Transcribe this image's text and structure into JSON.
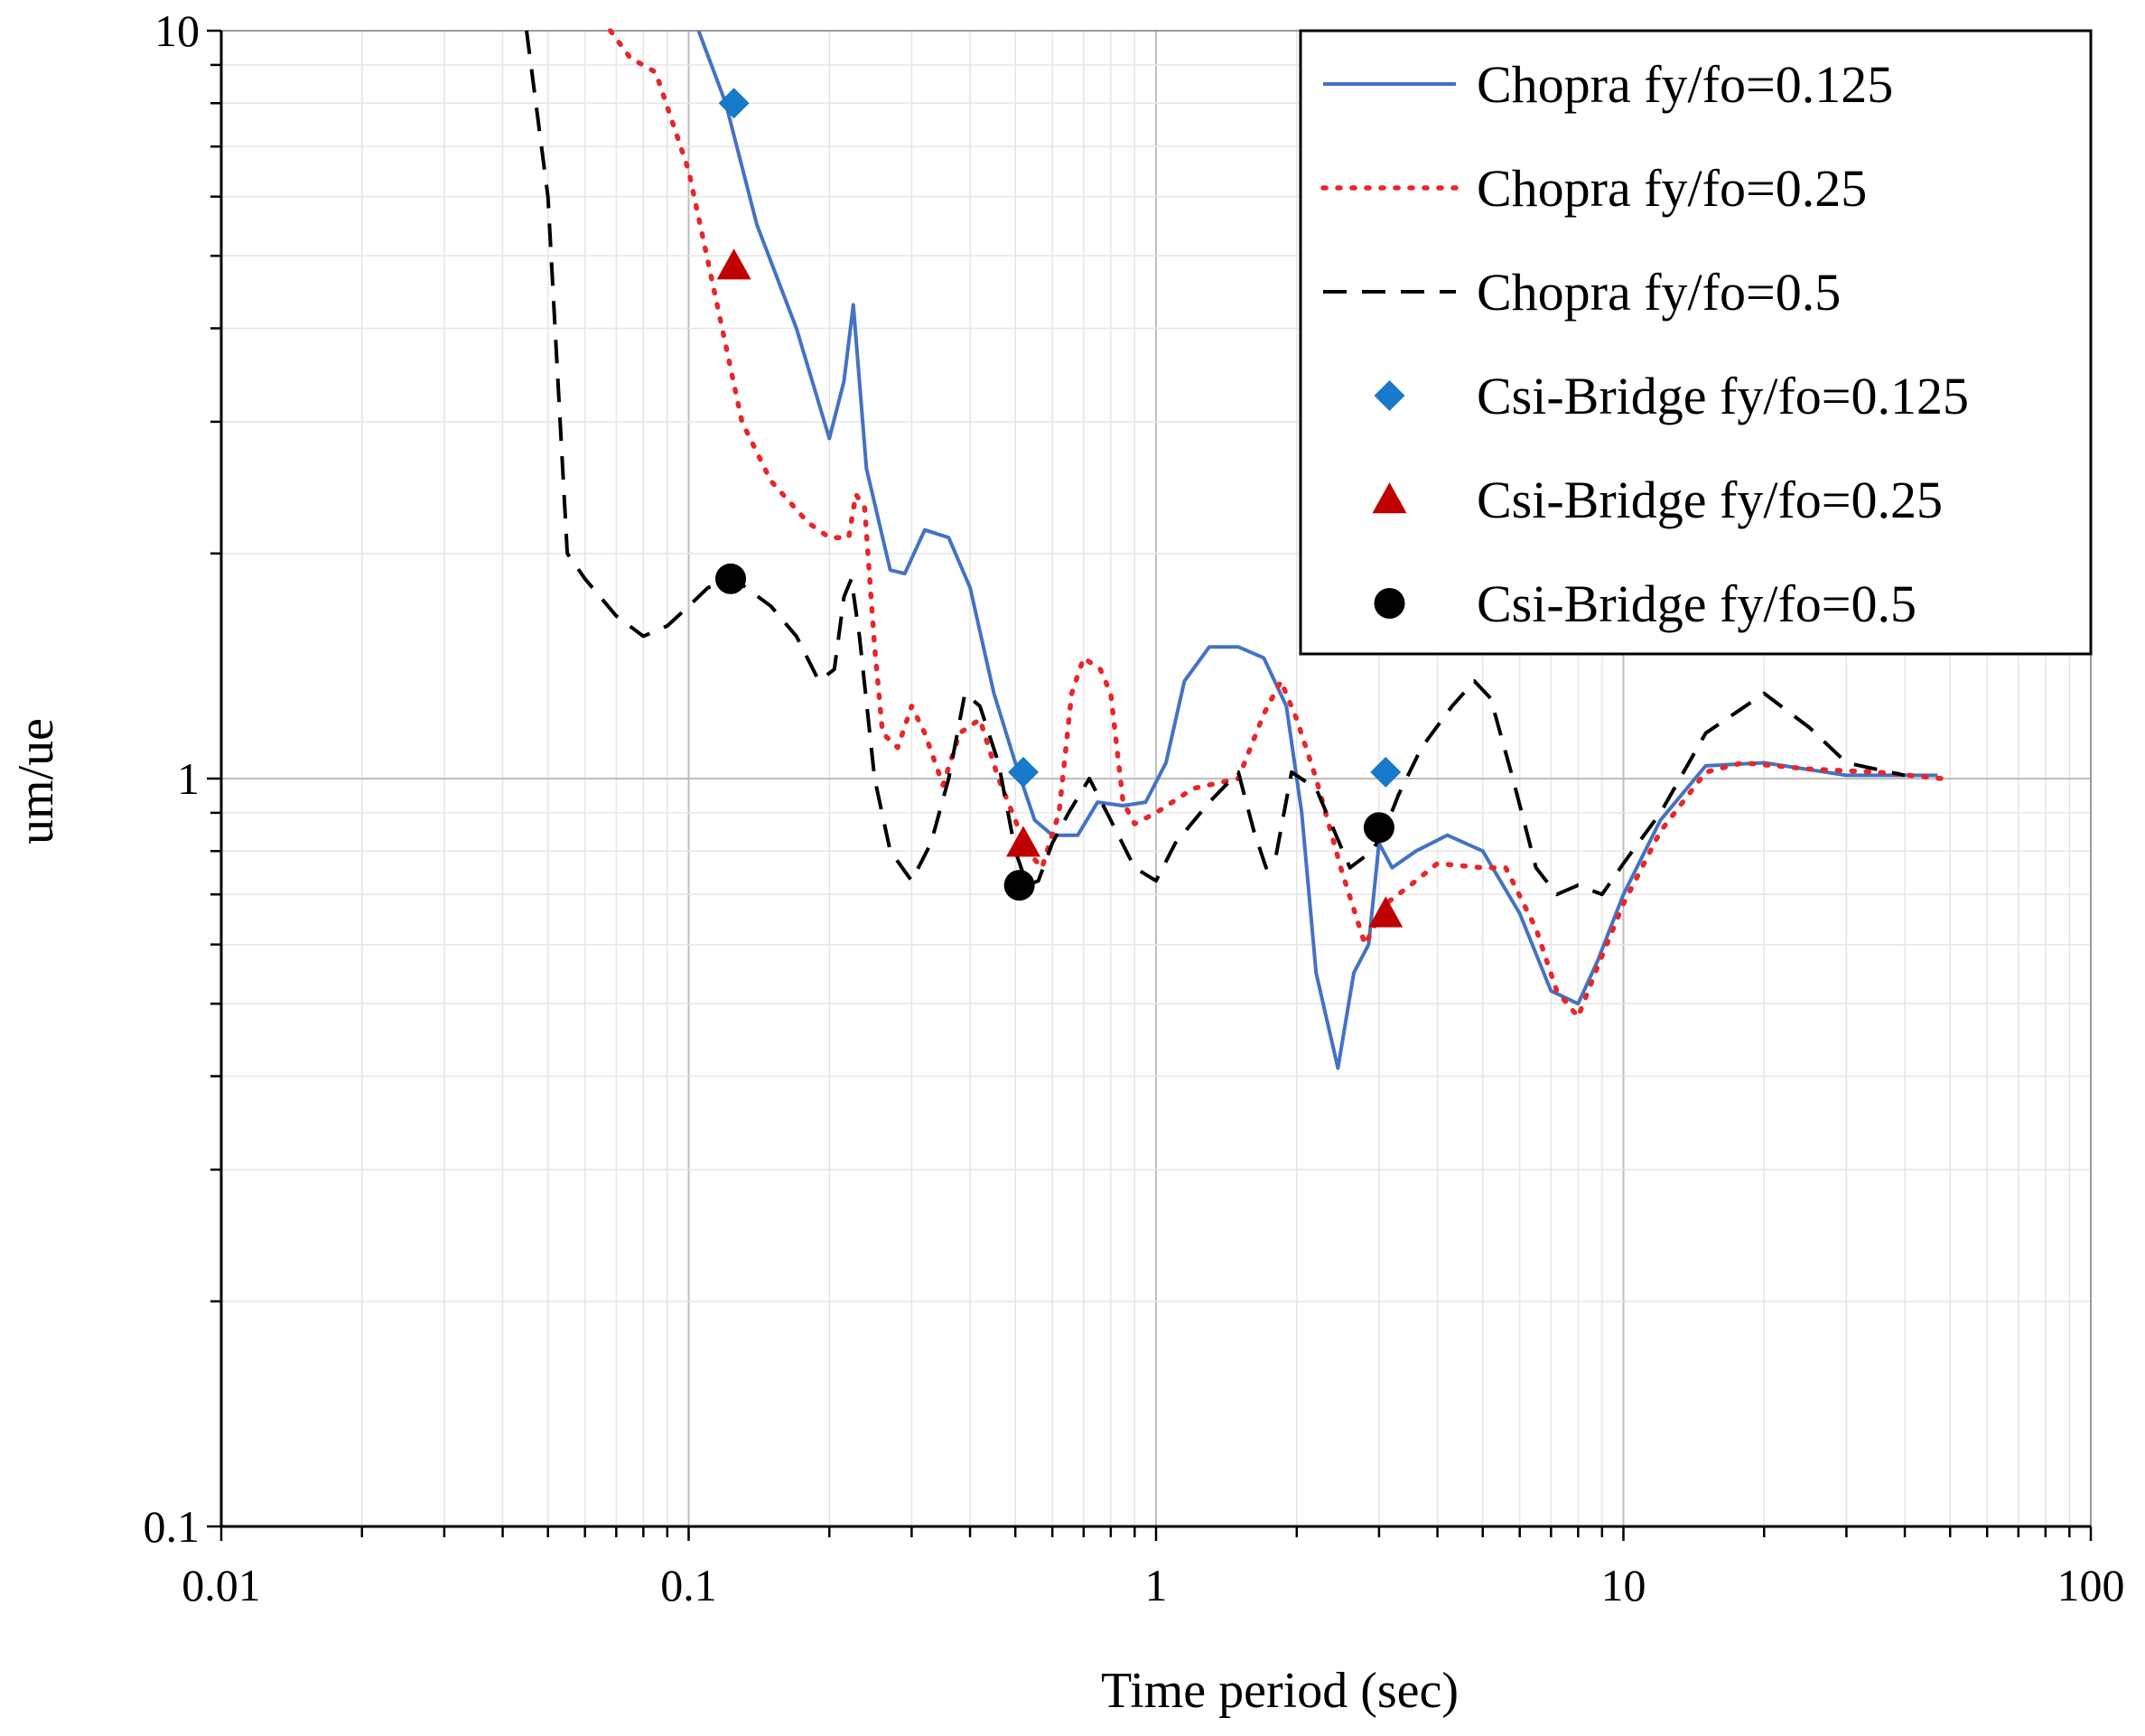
{
  "chart_data": {
    "type": "line",
    "title": "",
    "xlabel": "Time period (sec)",
    "ylabel": "um/ue",
    "xscale": "log",
    "yscale": "log",
    "xlim": [
      0.01,
      100
    ],
    "ylim": [
      0.1,
      10
    ],
    "grid": true,
    "legend_position": "top-right",
    "x_tick_labels": [
      "0.01",
      "0.1",
      "1",
      "10",
      "100"
    ],
    "y_tick_labels": [
      "0.1",
      "1",
      "10"
    ],
    "series": [
      {
        "name": "Chopra fy/fo=0.125",
        "kind": "line",
        "style": "solid",
        "color": "#4472C4",
        "points": [
          [
            0.105,
            10.0
          ],
          [
            0.12,
            8.0
          ],
          [
            0.14,
            5.5
          ],
          [
            0.17,
            4.0
          ],
          [
            0.2,
            2.85
          ],
          [
            0.215,
            3.4
          ],
          [
            0.225,
            4.3
          ],
          [
            0.24,
            2.6
          ],
          [
            0.27,
            1.9
          ],
          [
            0.29,
            1.88
          ],
          [
            0.32,
            2.15
          ],
          [
            0.36,
            2.1
          ],
          [
            0.4,
            1.8
          ],
          [
            0.45,
            1.3
          ],
          [
            0.5,
            1.05
          ],
          [
            0.55,
            0.88
          ],
          [
            0.6,
            0.84
          ],
          [
            0.68,
            0.84
          ],
          [
            0.75,
            0.93
          ],
          [
            0.85,
            0.92
          ],
          [
            0.95,
            0.93
          ],
          [
            1.05,
            1.05
          ],
          [
            1.15,
            1.35
          ],
          [
            1.3,
            1.5
          ],
          [
            1.5,
            1.5
          ],
          [
            1.7,
            1.45
          ],
          [
            1.9,
            1.25
          ],
          [
            2.05,
            0.9
          ],
          [
            2.2,
            0.55
          ],
          [
            2.45,
            0.41
          ],
          [
            2.65,
            0.55
          ],
          [
            2.85,
            0.6
          ],
          [
            3.0,
            0.82
          ],
          [
            3.2,
            0.76
          ],
          [
            3.6,
            0.8
          ],
          [
            4.2,
            0.84
          ],
          [
            5.0,
            0.8
          ],
          [
            6.0,
            0.66
          ],
          [
            7.0,
            0.52
          ],
          [
            8.0,
            0.5
          ],
          [
            8.8,
            0.57
          ],
          [
            10.0,
            0.7
          ],
          [
            12.0,
            0.88
          ],
          [
            15.0,
            1.04
          ],
          [
            20.0,
            1.05
          ],
          [
            30.0,
            1.01
          ],
          [
            47.0,
            1.01
          ]
        ]
      },
      {
        "name": "Chopra fy/fo=0.25",
        "kind": "line",
        "style": "dotted",
        "color": "#E8262A",
        "points": [
          [
            0.068,
            10.0
          ],
          [
            0.075,
            9.2
          ],
          [
            0.085,
            8.8
          ],
          [
            0.1,
            6.5
          ],
          [
            0.12,
            3.8
          ],
          [
            0.13,
            3.0
          ],
          [
            0.15,
            2.5
          ],
          [
            0.18,
            2.2
          ],
          [
            0.2,
            2.1
          ],
          [
            0.22,
            2.1
          ],
          [
            0.228,
            2.4
          ],
          [
            0.238,
            2.3
          ],
          [
            0.25,
            1.5
          ],
          [
            0.26,
            1.15
          ],
          [
            0.28,
            1.1
          ],
          [
            0.3,
            1.25
          ],
          [
            0.32,
            1.15
          ],
          [
            0.35,
            0.98
          ],
          [
            0.38,
            1.15
          ],
          [
            0.42,
            1.2
          ],
          [
            0.46,
            1.0
          ],
          [
            0.5,
            0.88
          ],
          [
            0.53,
            0.8
          ],
          [
            0.57,
            0.76
          ],
          [
            0.62,
            0.9
          ],
          [
            0.66,
            1.3
          ],
          [
            0.7,
            1.45
          ],
          [
            0.76,
            1.4
          ],
          [
            0.8,
            1.3
          ],
          [
            0.85,
            0.93
          ],
          [
            0.9,
            0.87
          ],
          [
            1.0,
            0.9
          ],
          [
            1.2,
            0.97
          ],
          [
            1.5,
            1.0
          ],
          [
            1.7,
            1.22
          ],
          [
            1.85,
            1.35
          ],
          [
            2.0,
            1.2
          ],
          [
            2.2,
            1.0
          ],
          [
            2.5,
            0.75
          ],
          [
            2.8,
            0.6
          ],
          [
            3.1,
            0.68
          ],
          [
            3.5,
            0.72
          ],
          [
            4.0,
            0.77
          ],
          [
            5.0,
            0.76
          ],
          [
            5.6,
            0.76
          ],
          [
            6.5,
            0.63
          ],
          [
            7.2,
            0.52
          ],
          [
            8.0,
            0.48
          ],
          [
            8.8,
            0.56
          ],
          [
            10.0,
            0.68
          ],
          [
            12.0,
            0.85
          ],
          [
            15.0,
            1.02
          ],
          [
            18.0,
            1.05
          ],
          [
            25.0,
            1.03
          ],
          [
            35.0,
            1.02
          ],
          [
            48.0,
            1.0
          ]
        ]
      },
      {
        "name": "Chopra fy/fo=0.5",
        "kind": "line",
        "style": "dashed",
        "color": "#000000",
        "points": [
          [
            0.045,
            10.0
          ],
          [
            0.05,
            6.0
          ],
          [
            0.055,
            2.0
          ],
          [
            0.06,
            1.85
          ],
          [
            0.07,
            1.65
          ],
          [
            0.08,
            1.55
          ],
          [
            0.09,
            1.6
          ],
          [
            0.1,
            1.7
          ],
          [
            0.11,
            1.8
          ],
          [
            0.125,
            1.85
          ],
          [
            0.15,
            1.7
          ],
          [
            0.17,
            1.55
          ],
          [
            0.19,
            1.35
          ],
          [
            0.205,
            1.4
          ],
          [
            0.215,
            1.75
          ],
          [
            0.223,
            1.85
          ],
          [
            0.232,
            1.55
          ],
          [
            0.25,
            1.0
          ],
          [
            0.27,
            0.8
          ],
          [
            0.3,
            0.73
          ],
          [
            0.33,
            0.82
          ],
          [
            0.36,
            1.0
          ],
          [
            0.39,
            1.3
          ],
          [
            0.42,
            1.25
          ],
          [
            0.46,
            1.05
          ],
          [
            0.5,
            0.8
          ],
          [
            0.53,
            0.72
          ],
          [
            0.56,
            0.73
          ],
          [
            0.6,
            0.82
          ],
          [
            0.65,
            0.9
          ],
          [
            0.72,
            1.0
          ],
          [
            0.8,
            0.88
          ],
          [
            0.9,
            0.76
          ],
          [
            1.0,
            0.73
          ],
          [
            1.1,
            0.82
          ],
          [
            1.3,
            0.93
          ],
          [
            1.5,
            1.02
          ],
          [
            1.62,
            0.85
          ],
          [
            1.72,
            0.76
          ],
          [
            1.8,
            0.78
          ],
          [
            1.95,
            1.02
          ],
          [
            2.2,
            0.97
          ],
          [
            2.6,
            0.76
          ],
          [
            2.9,
            0.8
          ],
          [
            3.1,
            0.86
          ],
          [
            3.3,
            0.95
          ],
          [
            3.7,
            1.1
          ],
          [
            4.3,
            1.25
          ],
          [
            4.8,
            1.35
          ],
          [
            5.2,
            1.28
          ],
          [
            5.8,
            1.0
          ],
          [
            6.5,
            0.76
          ],
          [
            7.2,
            0.7
          ],
          [
            8.0,
            0.72
          ],
          [
            9.0,
            0.7
          ],
          [
            10.0,
            0.77
          ],
          [
            12.0,
            0.9
          ],
          [
            15.0,
            1.15
          ],
          [
            20.0,
            1.3
          ],
          [
            25.0,
            1.17
          ],
          [
            30.0,
            1.05
          ],
          [
            40.0,
            1.01
          ]
        ]
      },
      {
        "name": "Csi-Bridge fy/fo=0.125",
        "kind": "marker",
        "marker": "diamond",
        "color": "#1779C9",
        "points": [
          [
            0.125,
            8.0
          ],
          [
            0.52,
            1.02
          ],
          [
            3.1,
            1.02
          ]
        ]
      },
      {
        "name": "Csi-Bridge fy/fo=0.25",
        "kind": "marker",
        "marker": "triangle",
        "color": "#C00000",
        "points": [
          [
            0.125,
            4.85
          ],
          [
            0.52,
            0.82
          ],
          [
            3.1,
            0.66
          ]
        ]
      },
      {
        "name": "Csi-Bridge fy/fo=0.5",
        "kind": "marker",
        "marker": "circle",
        "color": "#000000",
        "points": [
          [
            0.123,
            1.85
          ],
          [
            0.51,
            0.72
          ],
          [
            3.0,
            0.86
          ]
        ]
      }
    ]
  }
}
